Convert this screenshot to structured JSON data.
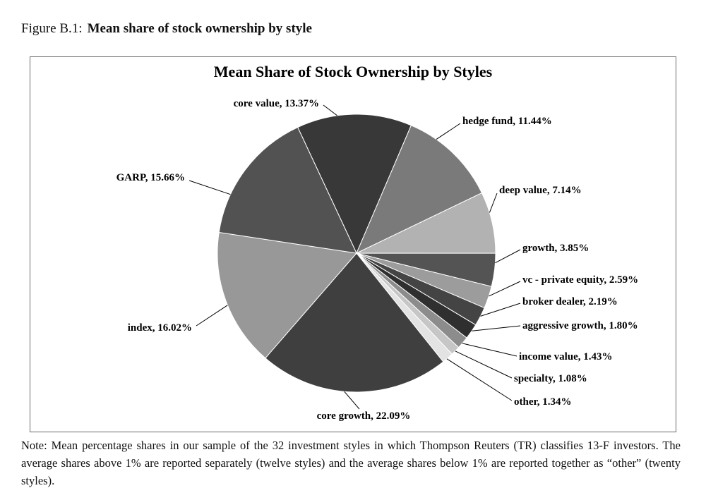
{
  "figure": {
    "caption_prefix": "Figure B.1:",
    "caption_title": "Mean share of stock ownership by style"
  },
  "note": "Note: Mean percentage shares in our sample of the 32 investment styles in which Thompson Reuters (TR) classifies 13-F investors. The average shares above 1% are reported separately (twelve styles) and the average shares below 1% are reported together as “other” (twenty styles).",
  "chart_data": {
    "type": "pie",
    "title": "Mean Share of Stock Ownership by Styles",
    "unit": "%",
    "start_angle_deg": -25,
    "legend": "none, labels outside with leader lines",
    "slices": [
      {
        "name": "core value",
        "value": 13.37,
        "label": "core value, 13.37%",
        "color": "#383838"
      },
      {
        "name": "hedge fund",
        "value": 11.44,
        "label": "hedge fund, 11.44%",
        "color": "#7a7a7a"
      },
      {
        "name": "deep value",
        "value": 7.14,
        "label": "deep value, 7.14%",
        "color": "#b2b2b2"
      },
      {
        "name": "growth",
        "value": 3.85,
        "label": "growth, 3.85%",
        "color": "#545454"
      },
      {
        "name": "vc - private equity",
        "value": 2.59,
        "label": "vc - private equity, 2.59%",
        "color": "#9c9c9c"
      },
      {
        "name": "broker dealer",
        "value": 2.19,
        "label": "broker dealer, 2.19%",
        "color": "#444444"
      },
      {
        "name": "aggressive growth",
        "value": 1.8,
        "label": "aggressive growth, 1.80%",
        "color": "#2f2f2f"
      },
      {
        "name": "income value",
        "value": 1.43,
        "label": "income value, 1.43%",
        "color": "#8c8c8c"
      },
      {
        "name": "specialty",
        "value": 1.08,
        "label": "specialty, 1.08%",
        "color": "#c6c6c6"
      },
      {
        "name": "other",
        "value": 1.34,
        "label": "other, 1.34%",
        "color": "#e3e3e3"
      },
      {
        "name": "core growth",
        "value": 22.09,
        "label": "core growth, 22.09%",
        "color": "#3f3f3f"
      },
      {
        "name": "index",
        "value": 16.02,
        "label": "index, 16.02%",
        "color": "#989898"
      },
      {
        "name": "GARP",
        "value": 15.66,
        "label": "GARP, 15.66%",
        "color": "#525252"
      }
    ]
  }
}
